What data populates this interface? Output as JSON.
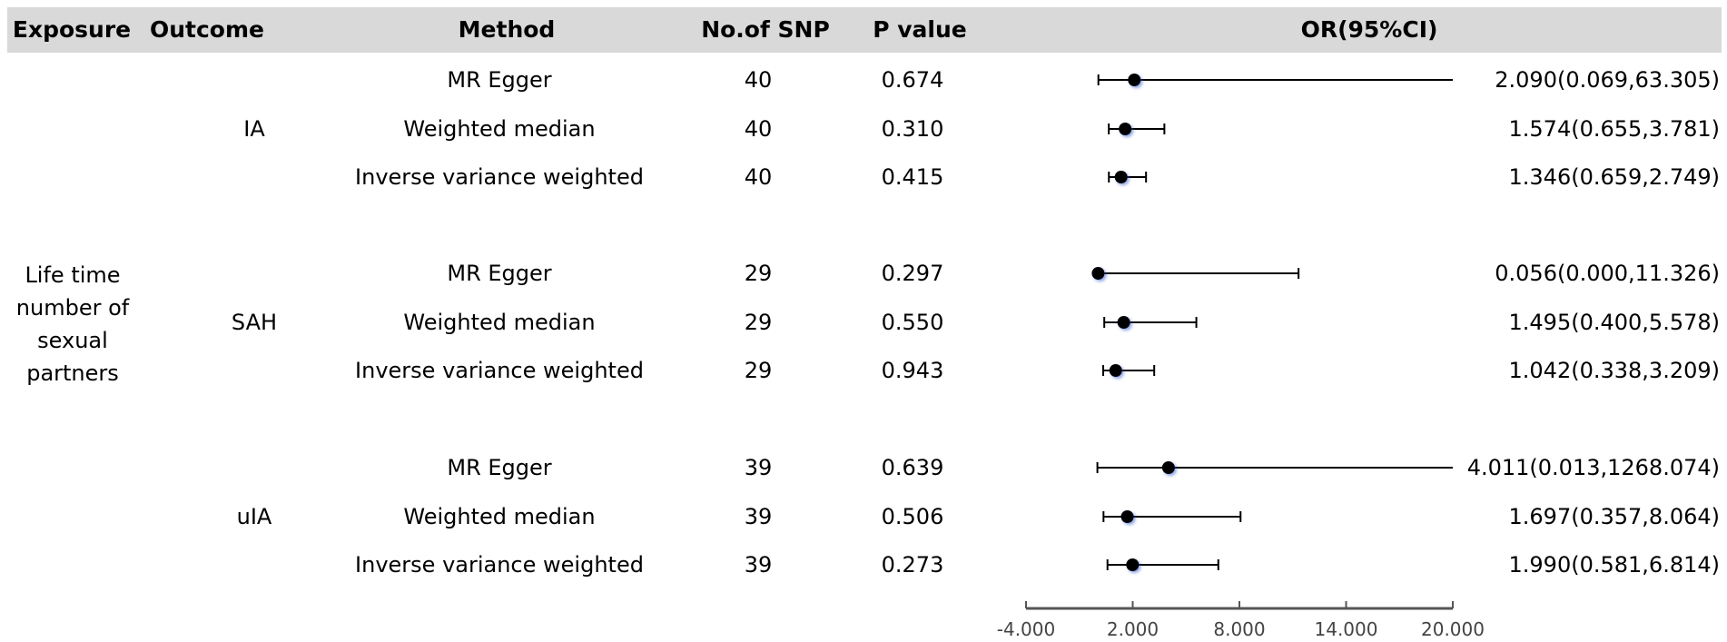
{
  "headers": {
    "exposure": "Exposure",
    "outcome": "Outcome",
    "method": "Method",
    "nsnp": "No.of SNP",
    "pvalue": "P value",
    "or": "OR(95%CI)"
  },
  "exposure": [
    "Life time",
    "number of",
    "sexual",
    "partners"
  ],
  "groups": [
    {
      "outcome": "IA",
      "rows": [
        {
          "method": "MR Egger",
          "nsnp": "40",
          "p": "0.674",
          "or_text": "2.090(0.069,63.305)",
          "or": 2.09,
          "lo": 0.069,
          "hi": 63.305,
          "hi_clipped": true
        },
        {
          "method": "Weighted median",
          "nsnp": "40",
          "p": "0.310",
          "or_text": "1.574(0.655,3.781)",
          "or": 1.574,
          "lo": 0.655,
          "hi": 3.781,
          "hi_clipped": false
        },
        {
          "method": "Inverse variance weighted",
          "nsnp": "40",
          "p": "0.415",
          "or_text": "1.346(0.659,2.749)",
          "or": 1.346,
          "lo": 0.659,
          "hi": 2.749,
          "hi_clipped": false
        }
      ]
    },
    {
      "outcome": "SAH",
      "rows": [
        {
          "method": "MR Egger",
          "nsnp": "29",
          "p": "0.297",
          "or_text": "0.056(0.000,11.326)",
          "or": 0.056,
          "lo": 0.0,
          "hi": 11.326,
          "hi_clipped": false
        },
        {
          "method": "Weighted median",
          "nsnp": "29",
          "p": "0.550",
          "or_text": "1.495(0.400,5.578)",
          "or": 1.495,
          "lo": 0.4,
          "hi": 5.578,
          "hi_clipped": false
        },
        {
          "method": "Inverse variance weighted",
          "nsnp": "29",
          "p": "0.943",
          "or_text": "1.042(0.338,3.209)",
          "or": 1.042,
          "lo": 0.338,
          "hi": 3.209,
          "hi_clipped": false
        }
      ]
    },
    {
      "outcome": "uIA",
      "rows": [
        {
          "method": "MR Egger",
          "nsnp": "39",
          "p": "0.639",
          "or_text": "4.011(0.013,1268.074)",
          "or": 4.011,
          "lo": 0.013,
          "hi": 1268.074,
          "hi_clipped": true
        },
        {
          "method": "Weighted median",
          "nsnp": "39",
          "p": "0.506",
          "or_text": "1.697(0.357,8.064)",
          "or": 1.697,
          "lo": 0.357,
          "hi": 8.064,
          "hi_clipped": false
        },
        {
          "method": "Inverse variance weighted",
          "nsnp": "39",
          "p": "0.273",
          "or_text": "1.990(0.581,6.814)",
          "or": 1.99,
          "lo": 0.581,
          "hi": 6.814,
          "hi_clipped": false
        }
      ]
    }
  ],
  "chart_data": {
    "type": "forest",
    "xlim": [
      -4,
      20
    ],
    "ticks": [
      -4,
      2,
      8,
      14,
      20
    ],
    "tick_labels": [
      "-4.000",
      "2.000",
      "8.000",
      "14.000",
      "20.000"
    ],
    "title": "OR(95%CI)"
  }
}
